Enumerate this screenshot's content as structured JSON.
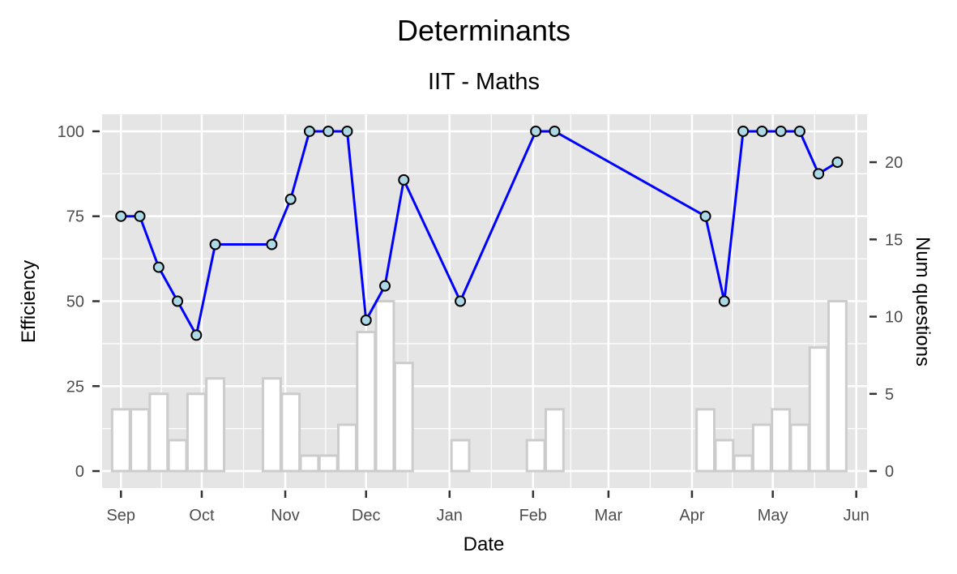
{
  "chart_data": {
    "type": "line",
    "title": "Determinants",
    "subtitle": "IIT - Maths",
    "xlabel": "Date",
    "ylabel": "Efficiency",
    "y2label": "Num questions",
    "xlim": [
      "2016-08-25",
      "2017-06-05"
    ],
    "ylim": [
      -5,
      105
    ],
    "y2lim": [
      -1.1,
      23.1
    ],
    "x_ticks": [
      {
        "date": "2016-09-01",
        "label": "Sep"
      },
      {
        "date": "2016-10-01",
        "label": "Oct"
      },
      {
        "date": "2016-11-01",
        "label": "Nov"
      },
      {
        "date": "2016-12-01",
        "label": "Dec"
      },
      {
        "date": "2017-01-01",
        "label": "Jan"
      },
      {
        "date": "2017-02-01",
        "label": "Feb"
      },
      {
        "date": "2017-03-01",
        "label": "Mar"
      },
      {
        "date": "2017-04-01",
        "label": "Apr"
      },
      {
        "date": "2017-05-01",
        "label": "May"
      },
      {
        "date": "2017-06-01",
        "label": "Jun"
      }
    ],
    "y_ticks": [
      0,
      25,
      50,
      75,
      100
    ],
    "y2_ticks": [
      0,
      5,
      10,
      15,
      20
    ],
    "grid": true,
    "colors": {
      "line": "#0000ff",
      "point_fill": "#add8e6",
      "point_stroke": "#000000",
      "bar_fill": "#ffffff",
      "bar_stroke": "#cccccc",
      "panel": "#e5e5e5",
      "grid": "#ffffff"
    },
    "series": [
      {
        "type": "line",
        "x": [
          "2016-09-01",
          "2016-09-08",
          "2016-09-15",
          "2016-09-22",
          "2016-09-29",
          "2016-10-06",
          "2016-10-27",
          "2016-11-03",
          "2016-11-10",
          "2016-11-17",
          "2016-11-24",
          "2016-12-01",
          "2016-12-08",
          "2016-12-15",
          "2017-01-05",
          "2017-02-02",
          "2017-02-09",
          "2017-04-06",
          "2017-04-13",
          "2017-04-20",
          "2017-04-27",
          "2017-05-04",
          "2017-05-11",
          "2017-05-18",
          "2017-05-25"
        ],
        "values": [
          75,
          75,
          60,
          50,
          40,
          66.7,
          66.7,
          80,
          100,
          100,
          100,
          44.4,
          54.5,
          85.7,
          50,
          100,
          100,
          75,
          50,
          100,
          100,
          100,
          100,
          87.5,
          90.9
        ]
      },
      {
        "type": "bar",
        "x": [
          "2016-09-01",
          "2016-09-08",
          "2016-09-15",
          "2016-09-22",
          "2016-09-29",
          "2016-10-06",
          "2016-10-27",
          "2016-11-03",
          "2016-11-10",
          "2016-11-17",
          "2016-11-24",
          "2016-12-01",
          "2016-12-08",
          "2016-12-15",
          "2017-01-05",
          "2017-02-02",
          "2017-02-09",
          "2017-04-06",
          "2017-04-13",
          "2017-04-20",
          "2017-04-27",
          "2017-05-04",
          "2017-05-11",
          "2017-05-18",
          "2017-05-25"
        ],
        "values": [
          4,
          4,
          5,
          2,
          5,
          6,
          6,
          5,
          1,
          1,
          3,
          9,
          11,
          7,
          2,
          2,
          4,
          4,
          2,
          1,
          3,
          4,
          3,
          8,
          11
        ]
      }
    ]
  }
}
